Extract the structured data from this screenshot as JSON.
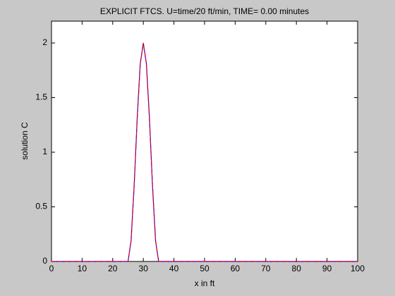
{
  "chart_data": {
    "type": "line",
    "title": "EXPLICIT FTCS. U=time/20 ft/min, TIME= 0.00 minutes",
    "xlabel": "x in ft",
    "ylabel": "solution C",
    "x": [
      0,
      25,
      26,
      27,
      28,
      29,
      30,
      31,
      32,
      33,
      34,
      35,
      100
    ],
    "series": [
      {
        "color": "#0000ff",
        "dash": false,
        "values": [
          0,
          0,
          0.19,
          0.69,
          1.31,
          1.81,
          2,
          1.81,
          1.31,
          0.69,
          0.19,
          0,
          0
        ]
      },
      {
        "color": "#ff0000",
        "dash": true,
        "values": [
          0,
          0,
          0.19,
          0.69,
          1.31,
          1.81,
          2,
          1.81,
          1.31,
          0.69,
          0.19,
          0,
          0
        ]
      }
    ],
    "xlim": [
      0,
      100
    ],
    "xticks": [
      0,
      10,
      20,
      30,
      40,
      50,
      60,
      70,
      80,
      90,
      100
    ],
    "ylim": [
      0,
      2.2
    ],
    "yticks": [
      0,
      0.5,
      1,
      1.5,
      2
    ],
    "grid": false
  }
}
